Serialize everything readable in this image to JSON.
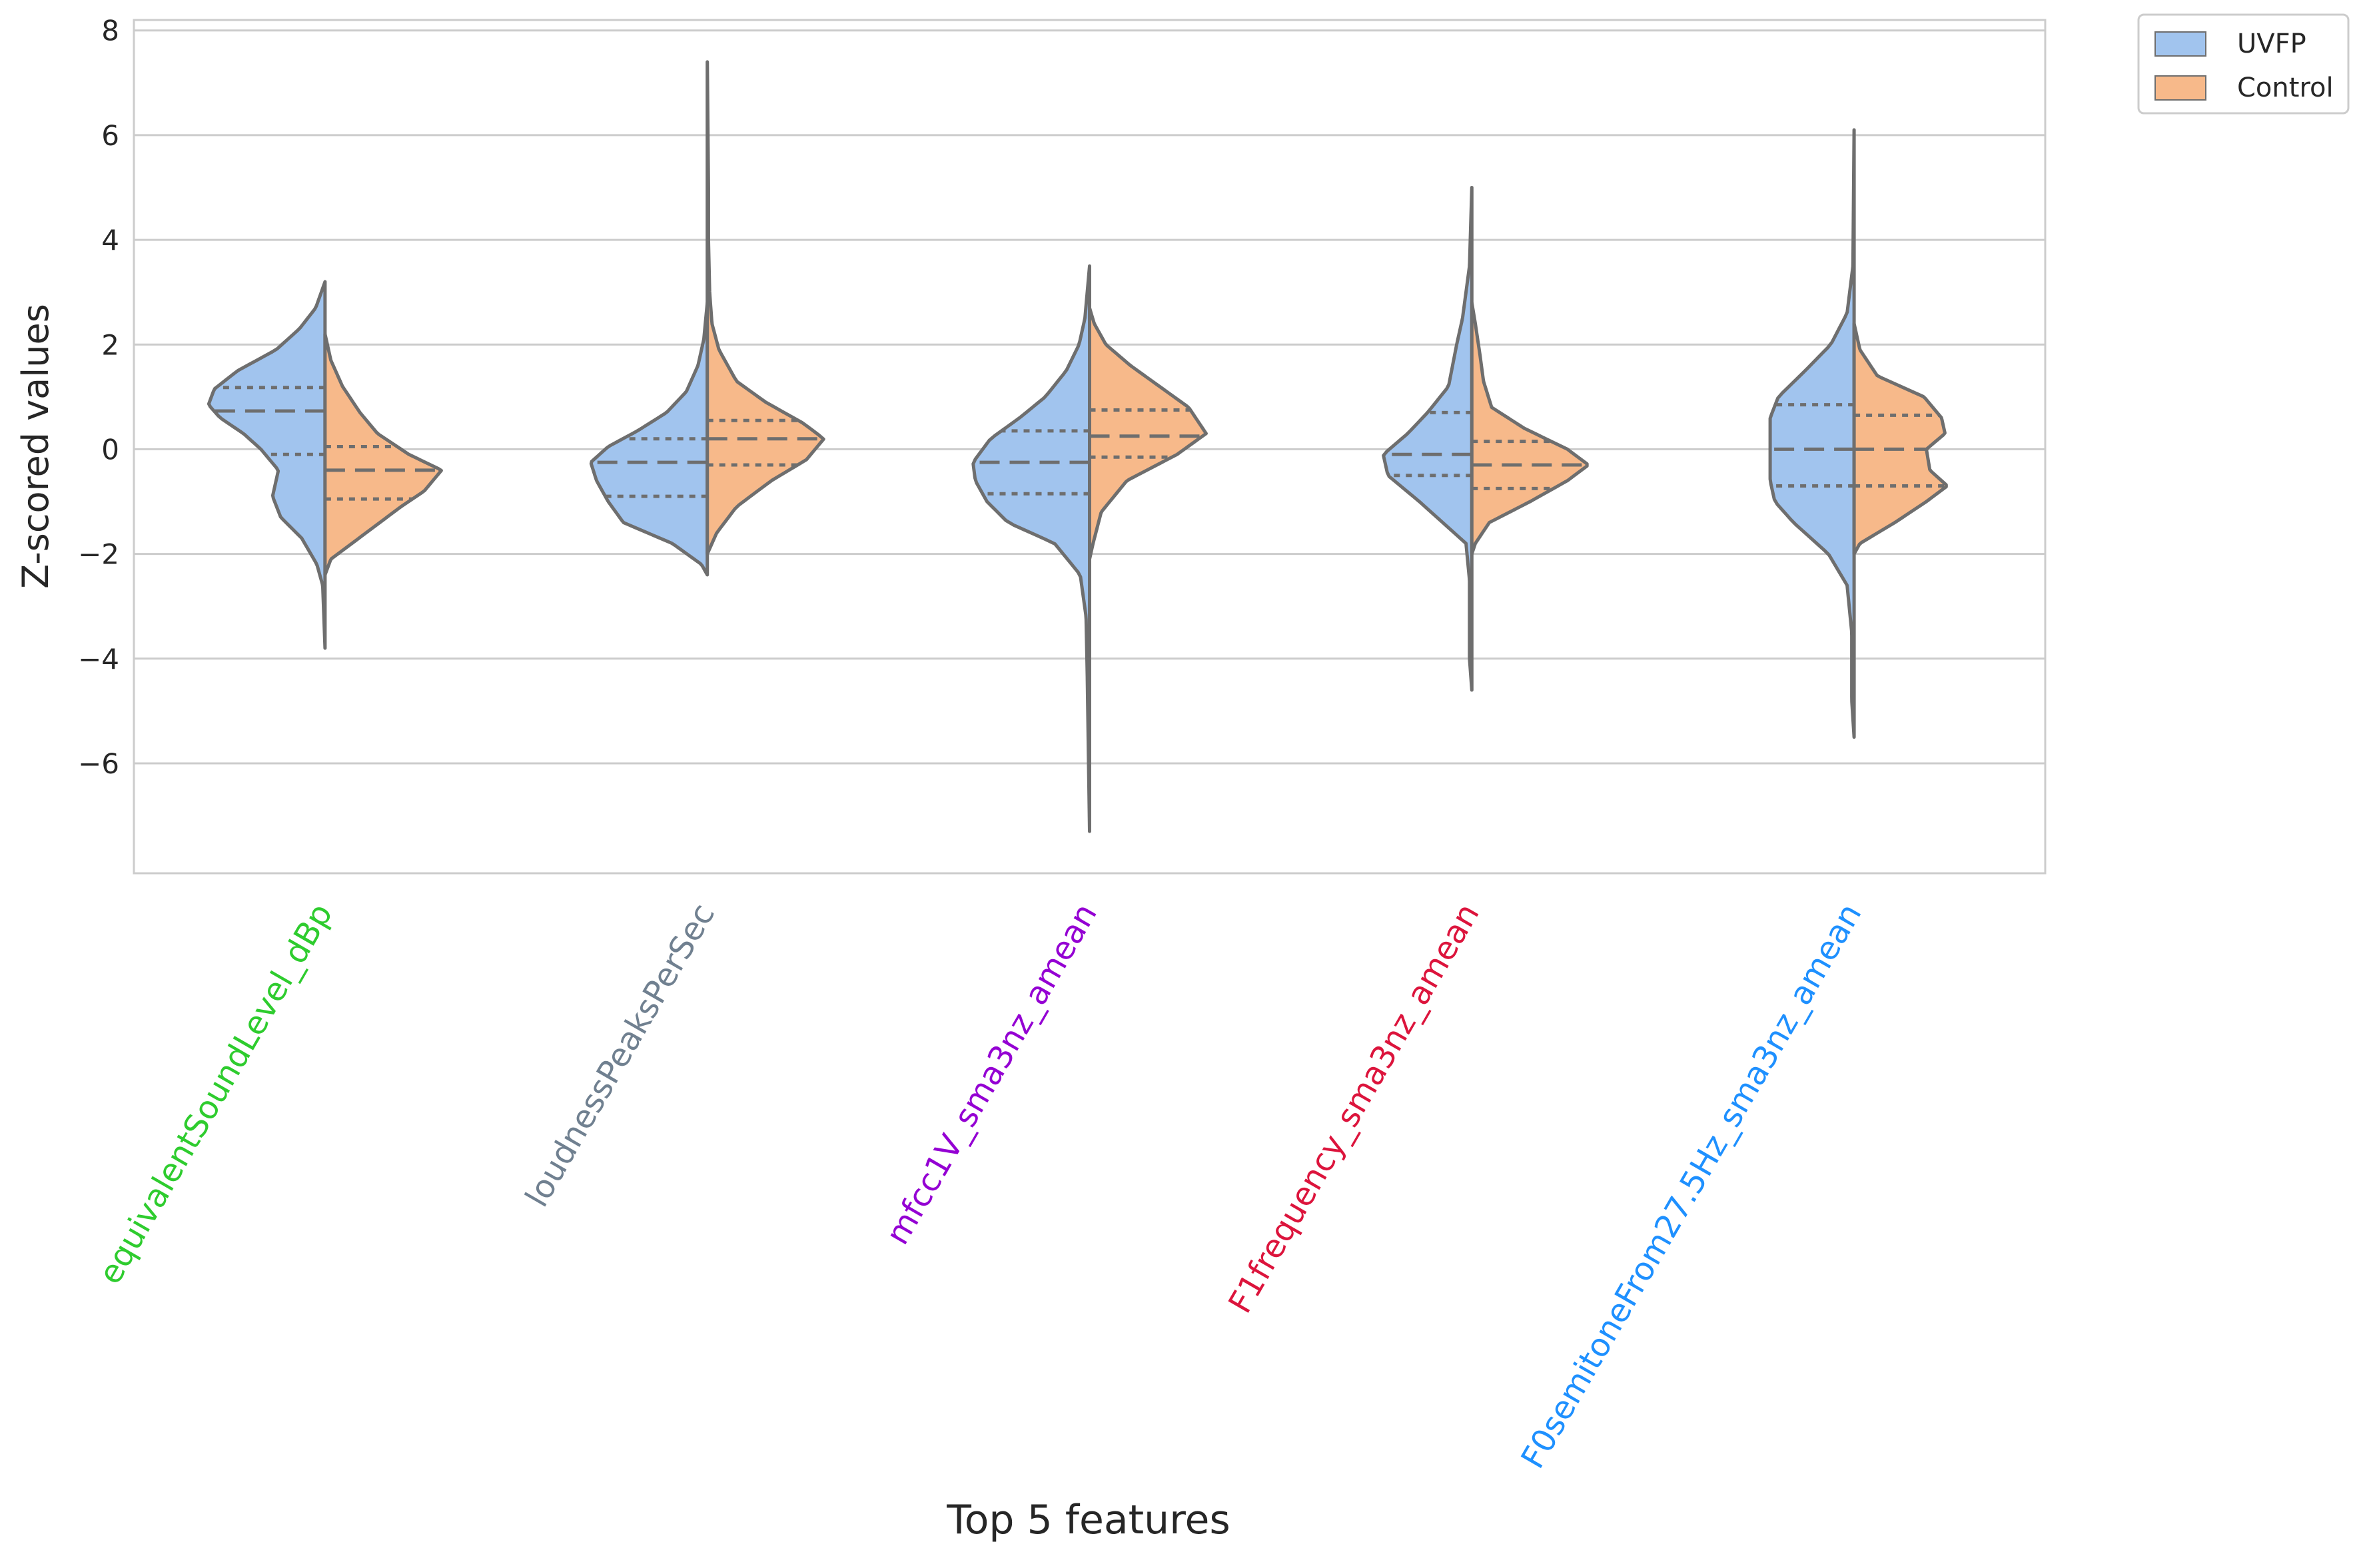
{
  "chart_data": {
    "type": "violin",
    "split": true,
    "xlabel": "Top 5 features",
    "ylabel": "Z-scored values",
    "ylim": [
      -8.1,
      8.2
    ],
    "yticks": [
      -6,
      -4,
      -2,
      0,
      2,
      4,
      6,
      8
    ],
    "ytick_labels": [
      "−6",
      "−4",
      "−2",
      "0",
      "2",
      "4",
      "6",
      "8"
    ],
    "grid": true,
    "legend_position": "outside-top-right",
    "categories": [
      "equivalentSoundLevel_dBp",
      "loudnessPeaksPerSec",
      "mfcc1V_sma3nz_amean",
      "F1frequency_sma3nz_amean",
      "F0semitoneFrom27.5Hz_sma3nz_amean"
    ],
    "category_colors": [
      "#2ecc2e",
      "#708090",
      "#9400d3",
      "#dc143c",
      "#1e90ff"
    ],
    "series": [
      {
        "name": "UVFP",
        "color": "#a1c4ee",
        "violins": [
          {
            "range": [
              -3.8,
              3.2
            ],
            "quartiles": [
              -0.1,
              0.73,
              1.18
            ],
            "density": [
              [
                -3.8,
                0.0
              ],
              [
                -2.6,
                0.02
              ],
              [
                -2.2,
                0.07
              ],
              [
                -1.7,
                0.2
              ],
              [
                -1.3,
                0.38
              ],
              [
                -0.9,
                0.45
              ],
              [
                -0.4,
                0.4
              ],
              [
                0.0,
                0.55
              ],
              [
                0.3,
                0.7
              ],
              [
                0.6,
                0.9
              ],
              [
                0.85,
                1.0
              ],
              [
                1.15,
                0.95
              ],
              [
                1.5,
                0.75
              ],
              [
                1.9,
                0.42
              ],
              [
                2.3,
                0.22
              ],
              [
                2.7,
                0.08
              ],
              [
                3.2,
                0.0
              ]
            ]
          },
          {
            "range": [
              -2.4,
              2.8
            ],
            "quartiles": [
              -0.9,
              -0.25,
              0.2
            ],
            "density": [
              [
                -2.4,
                0.0
              ],
              [
                -2.2,
                0.05
              ],
              [
                -1.8,
                0.3
              ],
              [
                -1.4,
                0.72
              ],
              [
                -1.0,
                0.85
              ],
              [
                -0.6,
                0.95
              ],
              [
                -0.25,
                1.0
              ],
              [
                0.05,
                0.85
              ],
              [
                0.35,
                0.6
              ],
              [
                0.7,
                0.35
              ],
              [
                1.1,
                0.18
              ],
              [
                1.6,
                0.08
              ],
              [
                2.1,
                0.03
              ],
              [
                2.8,
                0.0
              ]
            ]
          },
          {
            "range": [
              -7.3,
              3.5
            ],
            "quartiles": [
              -0.85,
              -0.25,
              0.35
            ],
            "density": [
              [
                -7.3,
                0.0
              ],
              [
                -4.3,
                0.02
              ],
              [
                -3.2,
                0.03
              ],
              [
                -2.4,
                0.08
              ],
              [
                -1.8,
                0.3
              ],
              [
                -1.4,
                0.7
              ],
              [
                -1.0,
                0.88
              ],
              [
                -0.6,
                0.98
              ],
              [
                -0.25,
                1.0
              ],
              [
                0.2,
                0.85
              ],
              [
                0.6,
                0.6
              ],
              [
                1.0,
                0.38
              ],
              [
                1.5,
                0.2
              ],
              [
                2.0,
                0.09
              ],
              [
                2.5,
                0.04
              ],
              [
                3.5,
                0.0
              ]
            ]
          },
          {
            "range": [
              -4.6,
              5.0
            ],
            "quartiles": [
              -0.5,
              -0.1,
              0.7
            ],
            "density": [
              [
                -4.6,
                0.0
              ],
              [
                -4.0,
                0.02
              ],
              [
                -2.5,
                0.02
              ],
              [
                -1.8,
                0.05
              ],
              [
                -1.4,
                0.25
              ],
              [
                -1.0,
                0.45
              ],
              [
                -0.5,
                0.72
              ],
              [
                -0.1,
                0.76
              ],
              [
                0.3,
                0.55
              ],
              [
                0.7,
                0.38
              ],
              [
                1.2,
                0.2
              ],
              [
                2.0,
                0.13
              ],
              [
                2.5,
                0.08
              ],
              [
                3.5,
                0.02
              ],
              [
                5.0,
                0.0
              ]
            ]
          },
          {
            "range": [
              -5.5,
              6.1
            ],
            "quartiles": [
              -0.7,
              0.0,
              0.85
            ],
            "density": [
              [
                -5.5,
                0.0
              ],
              [
                -4.8,
                0.02
              ],
              [
                -3.5,
                0.02
              ],
              [
                -2.6,
                0.06
              ],
              [
                -2.0,
                0.22
              ],
              [
                -1.4,
                0.52
              ],
              [
                -1.0,
                0.68
              ],
              [
                -0.6,
                0.72
              ],
              [
                0.0,
                0.72
              ],
              [
                0.6,
                0.72
              ],
              [
                1.0,
                0.65
              ],
              [
                1.5,
                0.42
              ],
              [
                2.0,
                0.2
              ],
              [
                2.6,
                0.06
              ],
              [
                3.5,
                0.01
              ],
              [
                6.1,
                0.0
              ]
            ]
          }
        ]
      },
      {
        "name": "Control",
        "color": "#f7b98a",
        "violins": [
          {
            "range": [
              -2.4,
              2.2
            ],
            "quartiles": [
              -0.95,
              -0.4,
              0.05
            ],
            "density": [
              [
                -2.4,
                0.0
              ],
              [
                -2.1,
                0.05
              ],
              [
                -1.6,
                0.35
              ],
              [
                -1.1,
                0.65
              ],
              [
                -0.8,
                0.85
              ],
              [
                -0.4,
                1.0
              ],
              [
                -0.1,
                0.72
              ],
              [
                0.3,
                0.45
              ],
              [
                0.7,
                0.3
              ],
              [
                1.2,
                0.15
              ],
              [
                1.7,
                0.05
              ],
              [
                2.2,
                0.0
              ]
            ]
          },
          {
            "range": [
              -2.0,
              7.4
            ],
            "quartiles": [
              -0.3,
              0.2,
              0.55
            ],
            "density": [
              [
                -2.0,
                0.0
              ],
              [
                -1.6,
                0.08
              ],
              [
                -1.1,
                0.25
              ],
              [
                -0.6,
                0.55
              ],
              [
                -0.2,
                0.85
              ],
              [
                0.2,
                1.0
              ],
              [
                0.5,
                0.82
              ],
              [
                0.9,
                0.5
              ],
              [
                1.3,
                0.25
              ],
              [
                1.9,
                0.1
              ],
              [
                2.4,
                0.04
              ],
              [
                3.0,
                0.02
              ],
              [
                4.0,
                0.01
              ],
              [
                5.0,
                0.01
              ],
              [
                7.4,
                0.0
              ]
            ]
          },
          {
            "range": [
              -2.1,
              2.7
            ],
            "quartiles": [
              -0.15,
              0.25,
              0.75
            ],
            "density": [
              [
                -2.1,
                0.0
              ],
              [
                -1.8,
                0.03
              ],
              [
                -1.2,
                0.1
              ],
              [
                -0.6,
                0.32
              ],
              [
                -0.1,
                0.75
              ],
              [
                0.3,
                1.0
              ],
              [
                0.8,
                0.85
              ],
              [
                1.2,
                0.6
              ],
              [
                1.6,
                0.35
              ],
              [
                2.0,
                0.14
              ],
              [
                2.4,
                0.04
              ],
              [
                2.7,
                0.0
              ]
            ]
          },
          {
            "range": [
              -2.0,
              2.8
            ],
            "quartiles": [
              -0.75,
              -0.3,
              0.15
            ],
            "density": [
              [
                -2.0,
                0.0
              ],
              [
                -1.8,
                0.03
              ],
              [
                -1.4,
                0.15
              ],
              [
                -1.0,
                0.5
              ],
              [
                -0.6,
                0.82
              ],
              [
                -0.3,
                1.0
              ],
              [
                0.0,
                0.82
              ],
              [
                0.4,
                0.45
              ],
              [
                0.8,
                0.17
              ],
              [
                1.3,
                0.1
              ],
              [
                1.8,
                0.07
              ],
              [
                2.4,
                0.03
              ],
              [
                2.8,
                0.0
              ]
            ]
          },
          {
            "range": [
              -2.0,
              2.4
            ],
            "quartiles": [
              -0.7,
              0.0,
              0.65
            ],
            "density": [
              [
                -2.0,
                0.0
              ],
              [
                -1.8,
                0.05
              ],
              [
                -1.4,
                0.35
              ],
              [
                -1.0,
                0.62
              ],
              [
                -0.7,
                0.8
              ],
              [
                -0.4,
                0.65
              ],
              [
                0.0,
                0.62
              ],
              [
                0.3,
                0.78
              ],
              [
                0.6,
                0.75
              ],
              [
                1.0,
                0.6
              ],
              [
                1.4,
                0.2
              ],
              [
                1.9,
                0.05
              ],
              [
                2.4,
                0.0
              ]
            ]
          }
        ]
      }
    ]
  }
}
